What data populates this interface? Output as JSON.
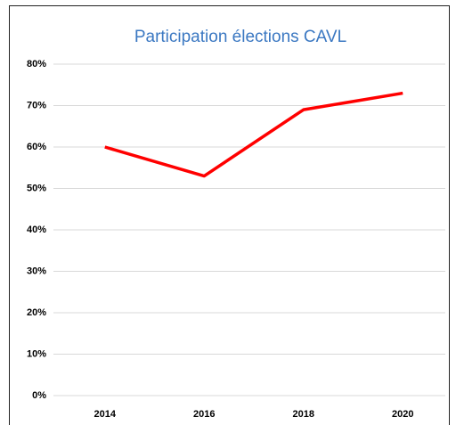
{
  "chart_data": {
    "type": "line",
    "title": "Participation élections CAVL",
    "categories": [
      "2014",
      "2016",
      "2018",
      "2020"
    ],
    "series": [
      {
        "name": "Participation",
        "color": "#ff0000",
        "values": [
          60,
          53,
          69,
          73
        ]
      }
    ],
    "ylim": [
      0,
      80
    ],
    "yticks": [
      {
        "value": 0,
        "label": "0%"
      },
      {
        "value": 10,
        "label": "10%"
      },
      {
        "value": 20,
        "label": "20%"
      },
      {
        "value": 30,
        "label": "30%"
      },
      {
        "value": 40,
        "label": "40%"
      },
      {
        "value": 50,
        "label": "50%"
      },
      {
        "value": 60,
        "label": "60%"
      },
      {
        "value": 70,
        "label": "70%"
      },
      {
        "value": 80,
        "label": "80%"
      }
    ],
    "grid": true
  }
}
